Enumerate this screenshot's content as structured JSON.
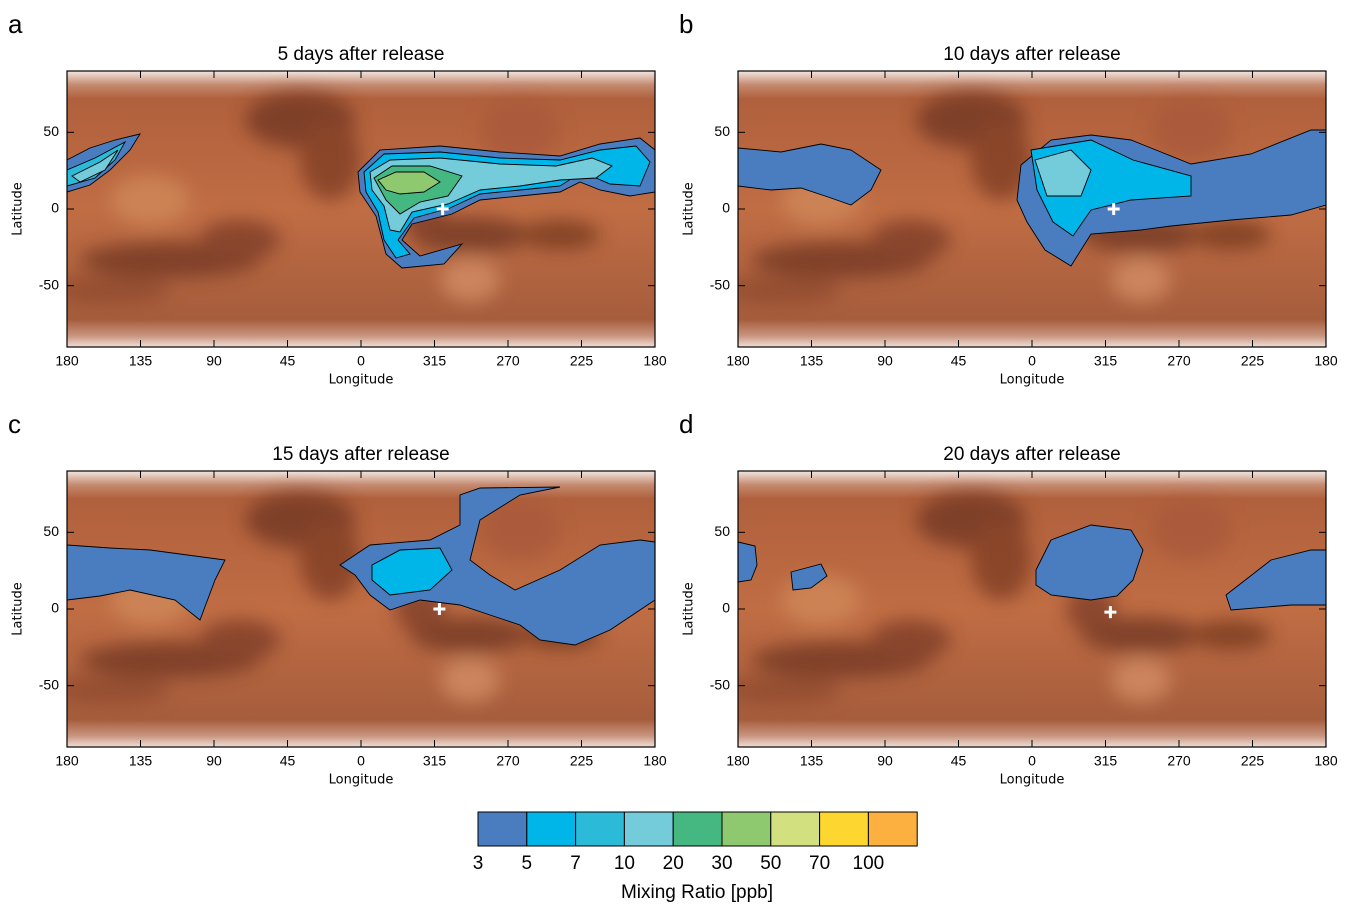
{
  "chart_data": [
    {
      "type": "map",
      "label": "a",
      "title": "5 days after release",
      "xlabel": "Longitude",
      "ylabel": "Latitude",
      "xlim": [
        180,
        -180
      ],
      "ylim": [
        -90,
        90
      ],
      "xticks": [
        180,
        135,
        90,
        45,
        0,
        {
          "value": -45,
          "label": "315"
        },
        {
          "value": -90,
          "label": "270"
        },
        {
          "value": -135,
          "label": "225"
        },
        {
          "value": -180,
          "label": "180"
        }
      ],
      "yticks": [
        -50,
        0,
        50
      ],
      "points": {
        "x": [
          -50
        ],
        "y": [
          0
        ]
      }
    },
    {
      "type": "map",
      "label": "b",
      "title": "10 days after release",
      "xlabel": "Longitude",
      "ylabel": "Latitude",
      "xlim": [
        180,
        -180
      ],
      "ylim": [
        -90,
        90
      ],
      "xticks": [
        180,
        135,
        90,
        45,
        0,
        {
          "value": -45,
          "label": "315"
        },
        {
          "value": -90,
          "label": "270"
        },
        {
          "value": -135,
          "label": "225"
        },
        {
          "value": -180,
          "label": "180"
        }
      ],
      "yticks": [
        -50,
        0,
        50
      ],
      "points": {
        "x": [
          -50
        ],
        "y": [
          0
        ]
      }
    },
    {
      "type": "map",
      "label": "c",
      "title": "15 days after release",
      "xlabel": "Longitude",
      "ylabel": "Latitude",
      "xlim": [
        180,
        -180
      ],
      "ylim": [
        -90,
        90
      ],
      "xticks": [
        180,
        135,
        90,
        45,
        0,
        {
          "value": -45,
          "label": "315"
        },
        {
          "value": -90,
          "label": "270"
        },
        {
          "value": -135,
          "label": "225"
        },
        {
          "value": -180,
          "label": "180"
        }
      ],
      "yticks": [
        -50,
        0,
        50
      ],
      "points": {
        "x": [
          -48
        ],
        "y": [
          0
        ]
      }
    },
    {
      "type": "map",
      "label": "d",
      "title": "20 days after release",
      "xlabel": "Longitude",
      "ylabel": "Latitude",
      "xlim": [
        180,
        -180
      ],
      "ylim": [
        -90,
        90
      ],
      "xticks": [
        180,
        135,
        90,
        45,
        0,
        {
          "value": -45,
          "label": "315"
        },
        {
          "value": -90,
          "label": "270"
        },
        {
          "value": -135,
          "label": "225"
        },
        {
          "value": -180,
          "label": "180"
        }
      ],
      "yticks": [
        -50,
        0,
        50
      ],
      "points": {
        "x": [
          -48
        ],
        "y": [
          -2
        ]
      }
    },
    {
      "type": "colorbar",
      "title": "Mixing Ratio [ppb]",
      "levels": [
        3,
        5,
        7,
        10,
        20,
        30,
        50,
        70,
        100
      ],
      "colors": [
        "#4a7cc0",
        "#00b5e8",
        "#2bbad8",
        "#74cbd9",
        "#45b882",
        "#8fc96f",
        "#d3e07f",
        "#fdd630",
        "#fbb040"
      ]
    }
  ]
}
